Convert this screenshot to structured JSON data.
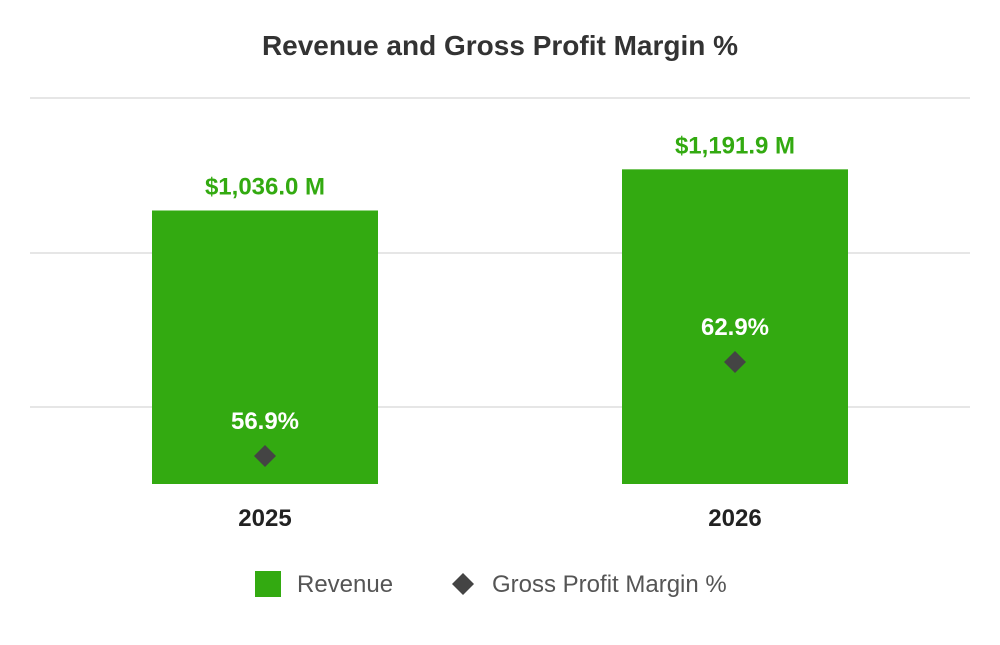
{
  "chart_data": {
    "type": "bar",
    "title": "Revenue and Gross Profit Margin %",
    "categories": [
      "2025",
      "2026"
    ],
    "series": [
      {
        "name": "Revenue",
        "type": "bar",
        "values": [
          1036.0,
          1191.9
        ],
        "labels": [
          "$1,036.0 M",
          "$1,191.9 M"
        ],
        "color": "#33AA11"
      },
      {
        "name": "Gross Profit Margin %",
        "type": "scatter",
        "marker": "diamond",
        "values": [
          56.9,
          62.9
        ],
        "labels": [
          "56.9%",
          "62.9%"
        ],
        "color": "#444444"
      }
    ],
    "xlabel": "",
    "ylabel": "",
    "grid": true,
    "legend": "bottom"
  },
  "colors": {
    "bar_label": "#33AA11",
    "inner_label": "#FFFFFF",
    "title": "#333333",
    "category": "#222222",
    "legend_text": "#555555",
    "grid": "#E6E6E6"
  }
}
